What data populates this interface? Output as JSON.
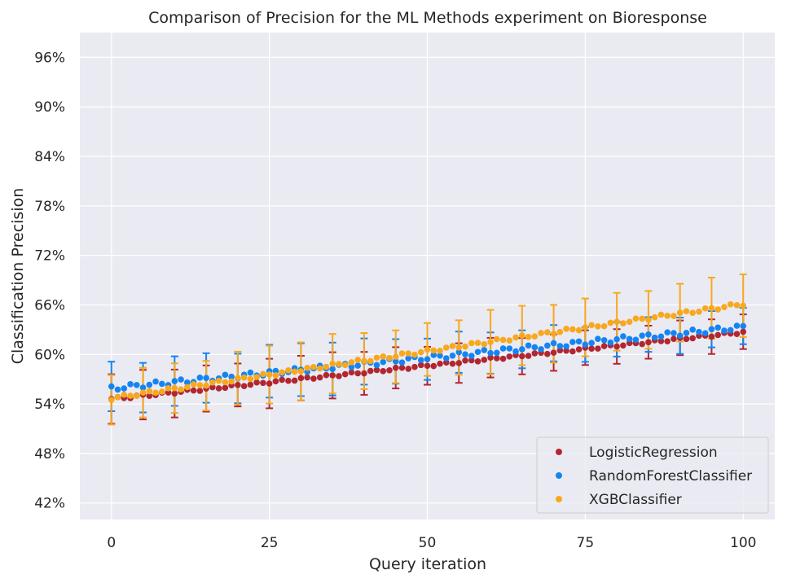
{
  "chart_data": {
    "type": "scatter",
    "title": "Comparison of Precision for the ML Methods experiment on Bioresponse",
    "xlabel": "Query iteration",
    "ylabel": "Classification Precision",
    "xlim": [
      -5,
      105
    ],
    "ylim": [
      0.4,
      0.99
    ],
    "xticks": [
      0,
      25,
      50,
      75,
      100
    ],
    "xtick_labels": [
      "0",
      "25",
      "50",
      "75",
      "100"
    ],
    "yticks": [
      0.42,
      0.48,
      0.54,
      0.6,
      0.66,
      0.72,
      0.78,
      0.84,
      0.9,
      0.96
    ],
    "ytick_labels": [
      "42%",
      "48%",
      "54%",
      "60%",
      "66%",
      "72%",
      "78%",
      "84%",
      "90%",
      "96%"
    ],
    "grid": true,
    "legend_position": "lower-right",
    "error_bar_every": 5,
    "series": [
      {
        "name": "LogisticRegression",
        "color": "#b22630",
        "start": 0.546,
        "end": 0.627,
        "noise": 0.0015,
        "error_halfwidths": [
          0.03,
          0.03,
          0.029,
          0.028,
          0.026,
          0.03,
          0.027,
          0.028,
          0.026,
          0.025,
          0.023,
          0.024,
          0.024,
          0.022,
          0.022,
          0.021,
          0.021,
          0.02,
          0.021,
          0.021,
          0.021
        ]
      },
      {
        "name": "RandomForestClassifier",
        "color": "#1584f2",
        "start": 0.559,
        "end": 0.633,
        "noise": 0.003,
        "error_halfwidths": [
          0.03,
          0.03,
          0.03,
          0.03,
          0.03,
          0.032,
          0.032,
          0.032,
          0.028,
          0.027,
          0.025,
          0.025,
          0.025,
          0.023,
          0.022,
          0.021,
          0.021,
          0.021,
          0.022,
          0.022,
          0.022
        ]
      },
      {
        "name": "XGBClassifier",
        "color": "#f8a81d",
        "start": 0.547,
        "end": 0.661,
        "noise": 0.002,
        "error_halfwidths": [
          0.03,
          0.03,
          0.03,
          0.03,
          0.032,
          0.035,
          0.035,
          0.036,
          0.034,
          0.032,
          0.032,
          0.033,
          0.039,
          0.036,
          0.035,
          0.035,
          0.035,
          0.035,
          0.035,
          0.037,
          0.038
        ]
      }
    ]
  }
}
